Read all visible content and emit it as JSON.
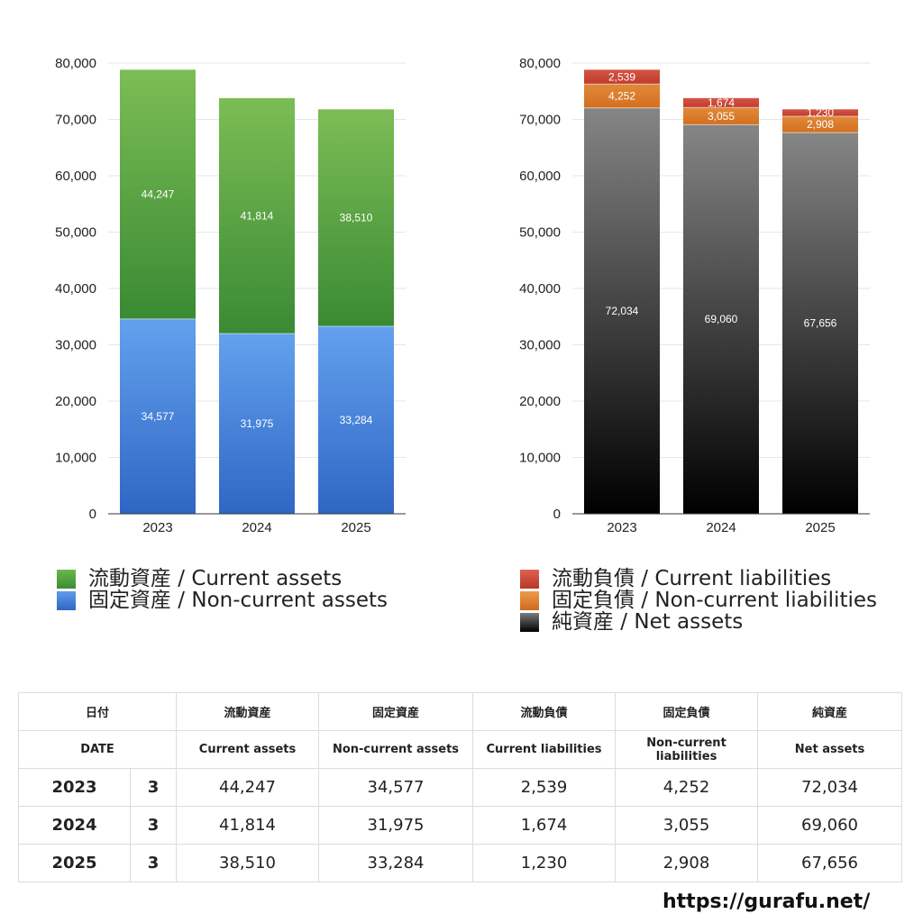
{
  "chart_data": [
    {
      "type": "bar",
      "stacked": true,
      "categories": [
        "2023",
        "2024",
        "2025"
      ],
      "ylim": [
        0,
        80000
      ],
      "yticks": [
        "0",
        "10,000",
        "20,000",
        "30,000",
        "40,000",
        "50,000",
        "60,000",
        "70,000",
        "80,000"
      ],
      "grid": true,
      "series": [
        {
          "name": "固定資産 / Non-current assets",
          "values": [
            34577,
            31975,
            33284
          ],
          "labels": [
            "34,577",
            "31,975",
            "33,284"
          ],
          "color_top": "#63a1ee",
          "color_bottom": "#2f66c4"
        },
        {
          "name": "流動資産 / Current assets",
          "values": [
            44247,
            41814,
            38510
          ],
          "labels": [
            "44,247",
            "41,814",
            "38,510"
          ],
          "color_top": "#7cbd55",
          "color_bottom": "#3a8a34"
        }
      ]
    },
    {
      "type": "bar",
      "stacked": true,
      "categories": [
        "2023",
        "2024",
        "2025"
      ],
      "ylim": [
        0,
        80000
      ],
      "yticks": [
        "0",
        "10,000",
        "20,000",
        "30,000",
        "40,000",
        "50,000",
        "60,000",
        "70,000",
        "80,000"
      ],
      "grid": true,
      "series": [
        {
          "name": "純資産 / Net assets",
          "values": [
            72034,
            69060,
            67656
          ],
          "labels": [
            "72,034",
            "69,060",
            "67,656"
          ],
          "color_top": "#858585",
          "color_bottom": "#000000"
        },
        {
          "name": "固定負債 / Non-current liabilities",
          "values": [
            4252,
            3055,
            2908
          ],
          "labels": [
            "4,252",
            "3,055",
            "2,908"
          ],
          "color_top": "#e08a3a",
          "color_bottom": "#d46f1f"
        },
        {
          "name": "流動負債 / Current liabilities",
          "values": [
            2539,
            1674,
            1230
          ],
          "labels": [
            "2,539",
            "1,674",
            "1,230"
          ],
          "color_top": "#d65545",
          "color_bottom": "#bf3b2d"
        }
      ]
    }
  ],
  "legend_left": [
    {
      "label": "流動資産 / Current assets",
      "color": "#4fa13f"
    },
    {
      "label": "固定資産 / Non-current assets",
      "color": "#3f7fdb"
    }
  ],
  "legend_right": [
    {
      "label": "流動負債 / Current liabilities",
      "color": "#cf4a3b"
    },
    {
      "label": "固定負債 / Non-current liabilities",
      "color": "#e07f2c"
    },
    {
      "label": "純資産 / Net assets",
      "color": "#222222"
    }
  ],
  "table": {
    "header_jp": {
      "date": "日付",
      "ca": "流動資産",
      "nca": "固定資産",
      "cl": "流動負債",
      "ncl": "固定負債",
      "na": "純資産"
    },
    "header_en": {
      "date": "DATE",
      "ca": "Current assets",
      "nca": "Non-current assets",
      "cl": "Current liabilities",
      "ncl": "Non-current liabilities",
      "na": "Net assets"
    },
    "rows": [
      {
        "year": "2023",
        "month": "3",
        "ca": "44,247",
        "nca": "34,577",
        "cl": "2,539",
        "ncl": "4,252",
        "na": "72,034"
      },
      {
        "year": "2024",
        "month": "3",
        "ca": "41,814",
        "nca": "31,975",
        "cl": "1,674",
        "ncl": "3,055",
        "na": "69,060"
      },
      {
        "year": "2025",
        "month": "3",
        "ca": "38,510",
        "nca": "33,284",
        "cl": "1,230",
        "ncl": "2,908",
        "na": "67,656"
      }
    ]
  },
  "footer": {
    "url": "https://gurafu.net/"
  }
}
